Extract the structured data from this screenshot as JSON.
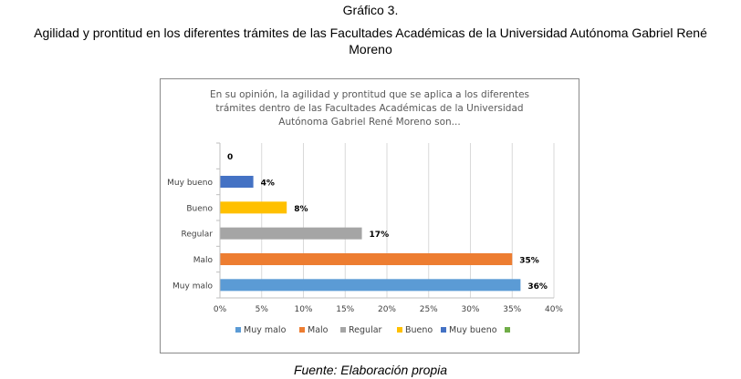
{
  "figure": {
    "number": "Gráfico 3.",
    "title_line1": "Agilidad y prontitud en los diferentes trámites de las Facultades Académicas de la Universidad Autónoma Gabriel René",
    "title_line2": "Moreno",
    "source": "Fuente: Elaboración propia"
  },
  "chart_data": {
    "type": "bar",
    "orientation": "horizontal",
    "title_lines": [
      "En su opinión, la agilidad y prontitud que se aplica a los diferentes",
      "trámites dentro de las Facultades Académicas de la Universidad",
      "Autónoma Gabriel René Moreno son..."
    ],
    "categories": [
      "",
      "Muy bueno",
      "Bueno",
      "Regular",
      "Malo",
      "Muy malo"
    ],
    "values": [
      0,
      4,
      8,
      17,
      35,
      36
    ],
    "value_labels": [
      "0",
      "4%",
      "8%",
      "17%",
      "35%",
      "36%"
    ],
    "colors": [
      "#70ad47",
      "#4472c4",
      "#ffc000",
      "#a5a5a5",
      "#ed7d31",
      "#5b9bd5"
    ],
    "xlim": [
      0,
      40
    ],
    "xticks": [
      0,
      5,
      10,
      15,
      20,
      25,
      30,
      35,
      40
    ],
    "xtick_labels": [
      "0%",
      "5%",
      "10%",
      "15%",
      "20%",
      "25%",
      "30%",
      "35%",
      "40%"
    ],
    "grid": true,
    "legend": {
      "position": "bottom",
      "entries": [
        {
          "label": "Muy malo",
          "color": "#5b9bd5"
        },
        {
          "label": "Malo",
          "color": "#ed7d31"
        },
        {
          "label": "Regular",
          "color": "#a5a5a5"
        },
        {
          "label": "Bueno",
          "color": "#ffc000"
        },
        {
          "label": "Muy bueno",
          "color": "#4472c4"
        },
        {
          "label": "",
          "color": "#70ad47"
        }
      ]
    }
  }
}
